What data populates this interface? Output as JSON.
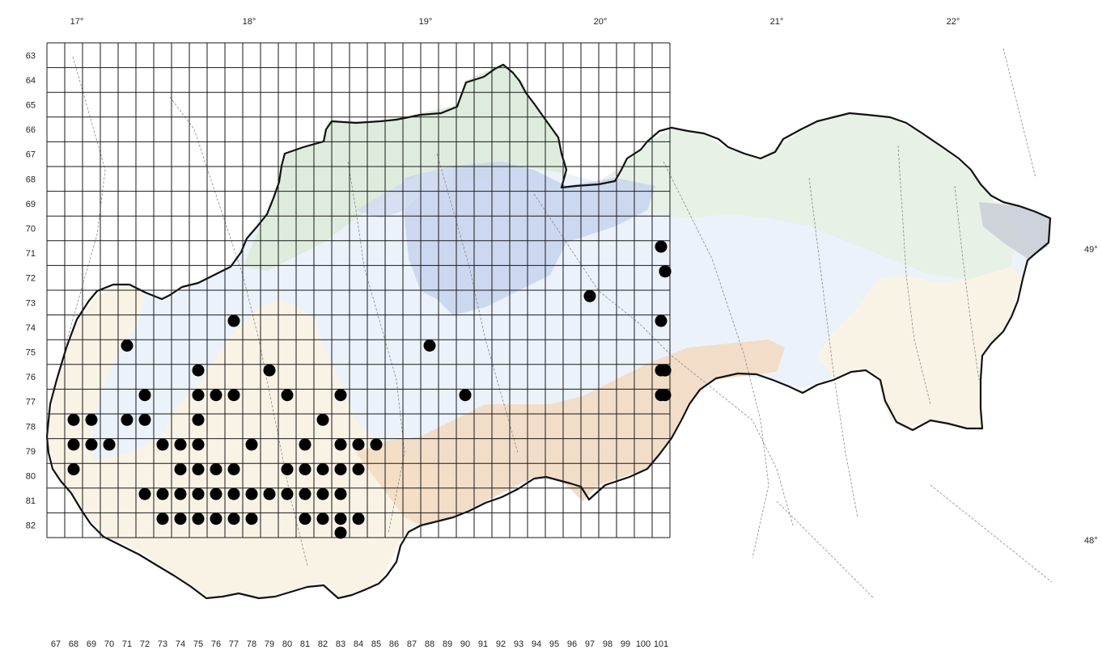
{
  "longitude_labels": [
    "17°",
    "18°",
    "19°",
    "20°",
    "21°",
    "22°"
  ],
  "latitude_labels": [
    "49°",
    "48°"
  ],
  "row_labels": [
    "63",
    "64",
    "65",
    "66",
    "67",
    "68",
    "69",
    "70",
    "71",
    "72",
    "73",
    "74",
    "75",
    "76",
    "77",
    "78",
    "79",
    "80",
    "81",
    "82"
  ],
  "col_labels": [
    "67",
    "68",
    "69",
    "70",
    "71",
    "72",
    "73",
    "74",
    "75",
    "76",
    "77",
    "78",
    "79",
    "80",
    "81",
    "82",
    "83",
    "84",
    "85",
    "86",
    "87",
    "88",
    "89",
    "90",
    "91",
    "92",
    "93",
    "94",
    "95",
    "96",
    "97",
    "98",
    "99",
    "100",
    "101"
  ],
  "colors": {
    "lowland": "#fbf3e3",
    "lowland_edge": "#f6e7cf",
    "warm_hills": "#f3d9bf",
    "submontane": "#e8f0f8",
    "montane": "#d2ddf1",
    "alpine": "#c7d3ee",
    "mountain_green": "#dcebd8",
    "green_light": "#e6f1e3",
    "grey": "#c9ccd6",
    "dot": "#000000"
  },
  "occurrences": [
    {
      "col": "68",
      "row": "78"
    },
    {
      "col": "68",
      "row": "79"
    },
    {
      "col": "68",
      "row": "80"
    },
    {
      "col": "69",
      "row": "78"
    },
    {
      "col": "69",
      "row": "79"
    },
    {
      "col": "70",
      "row": "79"
    },
    {
      "col": "71",
      "row": "75"
    },
    {
      "col": "71",
      "row": "78"
    },
    {
      "col": "72",
      "row": "77"
    },
    {
      "col": "72",
      "row": "78"
    },
    {
      "col": "72",
      "row": "81"
    },
    {
      "col": "73",
      "row": "79"
    },
    {
      "col": "73",
      "row": "81"
    },
    {
      "col": "73",
      "row": "82"
    },
    {
      "col": "74",
      "row": "81"
    },
    {
      "col": "74",
      "row": "82"
    },
    {
      "col": "74",
      "row": "79"
    },
    {
      "col": "74",
      "row": "80"
    },
    {
      "col": "75",
      "row": "82"
    },
    {
      "col": "75",
      "row": "76"
    },
    {
      "col": "75",
      "row": "77"
    },
    {
      "col": "75",
      "row": "78"
    },
    {
      "col": "75",
      "row": "79"
    },
    {
      "col": "75",
      "row": "80"
    },
    {
      "col": "75",
      "row": "81"
    },
    {
      "col": "76",
      "row": "77"
    },
    {
      "col": "76",
      "row": "80"
    },
    {
      "col": "76",
      "row": "81"
    },
    {
      "col": "76",
      "row": "82"
    },
    {
      "col": "77",
      "row": "74"
    },
    {
      "col": "77",
      "row": "77"
    },
    {
      "col": "77",
      "row": "80"
    },
    {
      "col": "77",
      "row": "81"
    },
    {
      "col": "77",
      "row": "82"
    },
    {
      "col": "78",
      "row": "79"
    },
    {
      "col": "78",
      "row": "81"
    },
    {
      "col": "78",
      "row": "82"
    },
    {
      "col": "79",
      "row": "76"
    },
    {
      "col": "79",
      "row": "81"
    },
    {
      "col": "80",
      "row": "77"
    },
    {
      "col": "80",
      "row": "80"
    },
    {
      "col": "80",
      "row": "81"
    },
    {
      "col": "81",
      "row": "79"
    },
    {
      "col": "81",
      "row": "80"
    },
    {
      "col": "81",
      "row": "81"
    },
    {
      "col": "81",
      "row": "82"
    },
    {
      "col": "82",
      "row": "78"
    },
    {
      "col": "82",
      "row": "80"
    },
    {
      "col": "82",
      "row": "81"
    },
    {
      "col": "82",
      "row": "82"
    },
    {
      "col": "83",
      "row": "77"
    },
    {
      "col": "83",
      "row": "79"
    },
    {
      "col": "83",
      "row": "80"
    },
    {
      "col": "83",
      "row": "81"
    },
    {
      "col": "83",
      "row": "82"
    },
    {
      "col": "83",
      "row": "83"
    },
    {
      "col": "84",
      "row": "79"
    },
    {
      "col": "84",
      "row": "80"
    },
    {
      "col": "84",
      "row": "82"
    },
    {
      "col": "85",
      "row": "79"
    },
    {
      "col": "88",
      "row": "75"
    },
    {
      "col": "90",
      "row": "77"
    },
    {
      "col": "97",
      "row": "73"
    },
    {
      "col": "101",
      "row": "71"
    },
    {
      "col": "101",
      "row": "74"
    },
    {
      "col": "101",
      "row": "76"
    },
    {
      "col": "101",
      "row": "77"
    },
    {
      "col": "102",
      "row": "77"
    },
    {
      "col": "103",
      "row": "72"
    },
    {
      "col": "104",
      "row": "76"
    },
    {
      "col": "105",
      "row": "76"
    },
    {
      "col": "106",
      "row": "72"
    }
  ]
}
